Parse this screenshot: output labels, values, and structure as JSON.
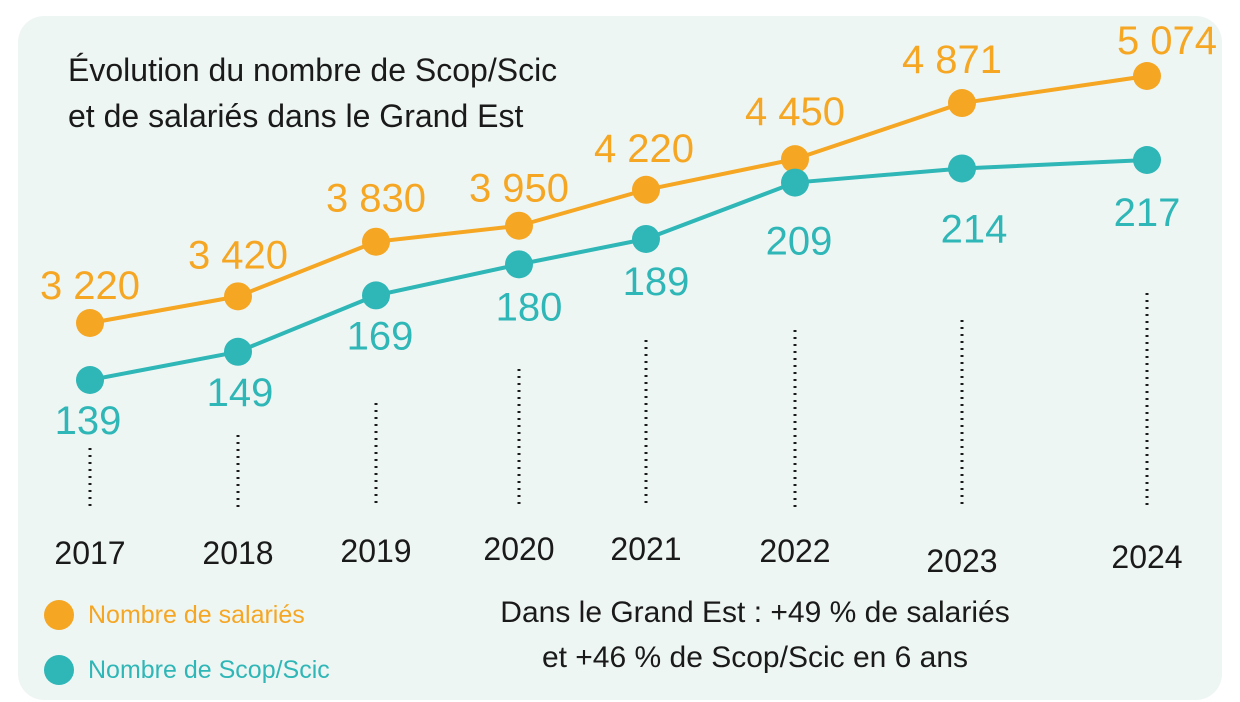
{
  "title_lines": [
    "Évolution du nombre de Scop/Scic",
    "et de salariés dans le Grand Est"
  ],
  "note_lines": [
    "Dans le Grand Est : +49 % de salariés",
    "et +46 % de Scop/Scic en 6 ans"
  ],
  "colors": {
    "salaries": "#f5a623",
    "scop": "#2fb6b6",
    "text": "#1a1a1a",
    "background": "#eef6f4"
  },
  "chart_data": {
    "type": "line",
    "title": "Évolution du nombre de Scop/Scic et de salariés dans le Grand Est",
    "categories": [
      "2017",
      "2018",
      "2019",
      "2020",
      "2021",
      "2022",
      "2023",
      "2024"
    ],
    "series": [
      {
        "name": "Nombre de salariés",
        "color": "#f5a623",
        "values": [
          3220,
          3420,
          3830,
          3950,
          4220,
          4450,
          4871,
          5074
        ],
        "labels": [
          "3 220",
          "3 420",
          "3 830",
          "3 950",
          "4 220",
          "4 450",
          "4 871",
          "5 074"
        ]
      },
      {
        "name": "Nombre de Scop/Scic",
        "color": "#2fb6b6",
        "values": [
          139,
          149,
          169,
          180,
          189,
          209,
          214,
          217
        ],
        "labels": [
          "139",
          "149",
          "169",
          "180",
          "189",
          "209",
          "214",
          "217"
        ]
      }
    ],
    "legend_position": "bottom-left",
    "grid": false,
    "axes_visible": false
  }
}
